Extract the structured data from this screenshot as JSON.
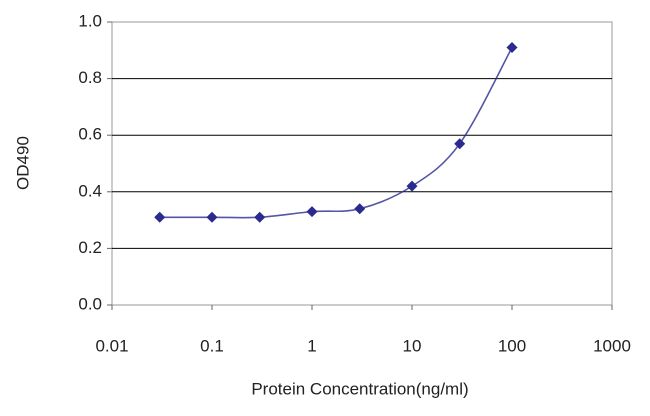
{
  "chart_data": {
    "type": "line",
    "x_label": "Protein Concentration(ng/ml)",
    "y_label": "OD490",
    "x": [
      0.03,
      0.1,
      0.3,
      1,
      3,
      10,
      30,
      100
    ],
    "series": [
      {
        "name": "OD490",
        "color": "#2b2b8f",
        "values": [
          0.31,
          0.31,
          0.31,
          0.33,
          0.34,
          0.42,
          0.57,
          0.91
        ]
      }
    ],
    "xlim": [
      0.01,
      1000
    ],
    "xticks": [
      0.01,
      0.1,
      1,
      10,
      100,
      1000
    ],
    "xscale": "log",
    "ylim": [
      0,
      1
    ],
    "yticks": [
      {
        "value": 0,
        "label": "0.0"
      },
      0.2,
      0.4,
      0.6,
      0.8,
      {
        "value": 1,
        "label": "1.0"
      }
    ],
    "grid": true
  }
}
